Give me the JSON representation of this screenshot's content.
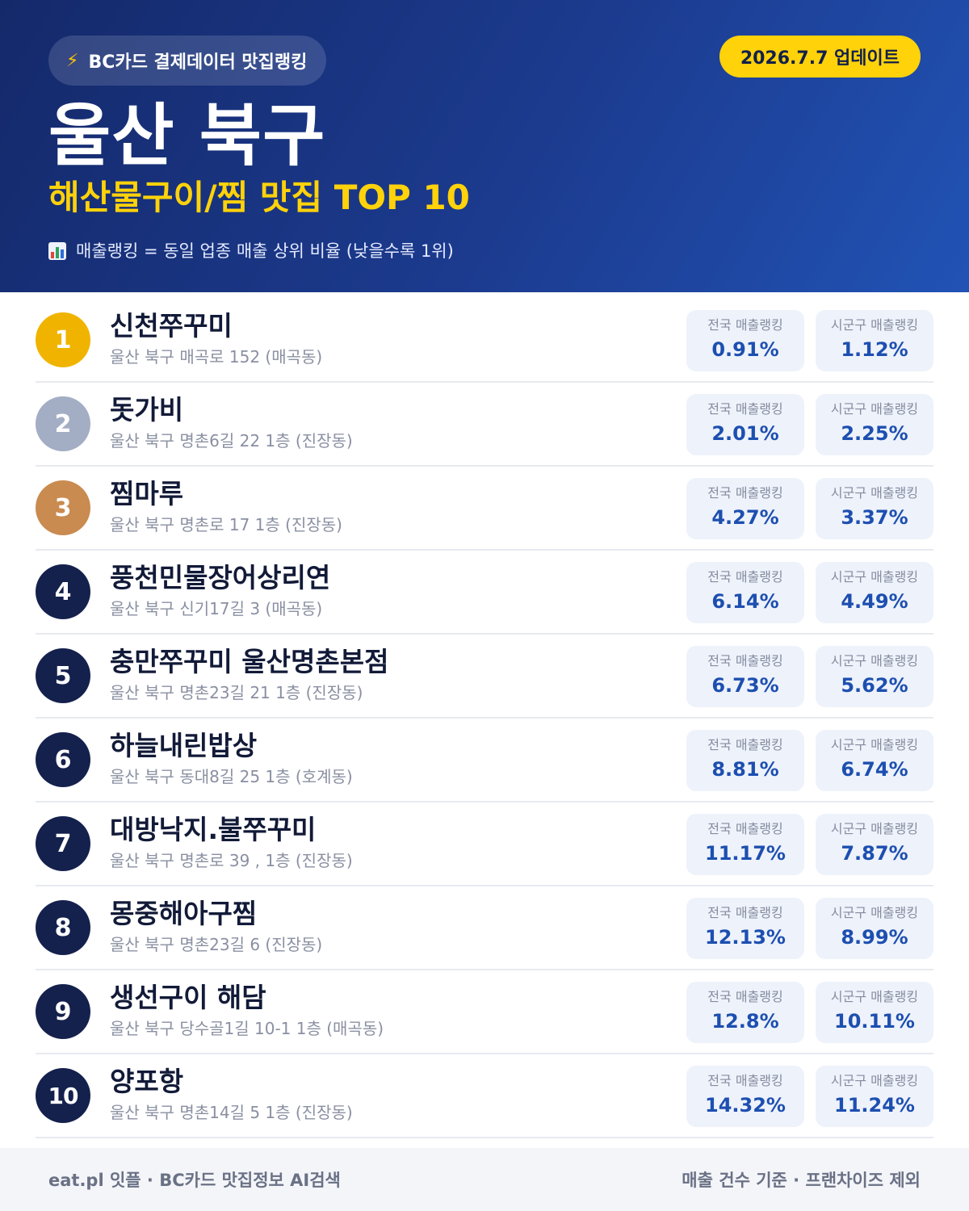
{
  "header": {
    "source_label": "BC카드 결제데이터 맛집랭킹",
    "update_label": "2026.7.7 업데이트",
    "region": "울산 북구",
    "subtitle": "해산물구이/찜 맛집 TOP 10",
    "legend_note": "매출랭킹 = 동일 업종 매출 상위 비율 (낮을수록 1위)",
    "icons": {
      "source": "lightning-bolt-icon",
      "legend": "bar-chart-icon"
    }
  },
  "colors": {
    "header_start": "#14296a",
    "header_end": "#2153b5",
    "accent_yellow": "#ffd20a",
    "rank_gold": "#f0b400",
    "rank_silver": "#a3aec5",
    "rank_bronze": "#c98b50",
    "rank_default": "#14214d",
    "stat_value": "#1d4fb0"
  },
  "stat_labels": {
    "national": "전국 매출랭킹",
    "local": "시군구 매출랭킹"
  },
  "restaurants": [
    {
      "rank": "1",
      "name": "신천쭈꾸미",
      "address": "울산 북구 매곡로 152 (매곡동)",
      "national": "0.91%",
      "local": "1.12%"
    },
    {
      "rank": "2",
      "name": "돗가비",
      "address": "울산 북구 명촌6길 22 1층 (진장동)",
      "national": "2.01%",
      "local": "2.25%"
    },
    {
      "rank": "3",
      "name": "찜마루",
      "address": "울산 북구 명촌로 17 1층 (진장동)",
      "national": "4.27%",
      "local": "3.37%"
    },
    {
      "rank": "4",
      "name": "풍천민물장어상리연",
      "address": "울산 북구 신기17길 3 (매곡동)",
      "national": "6.14%",
      "local": "4.49%"
    },
    {
      "rank": "5",
      "name": "충만쭈꾸미 울산명촌본점",
      "address": "울산 북구 명촌23길 21 1층 (진장동)",
      "national": "6.73%",
      "local": "5.62%"
    },
    {
      "rank": "6",
      "name": "하늘내린밥상",
      "address": "울산 북구 동대8길 25 1층 (호계동)",
      "national": "8.81%",
      "local": "6.74%"
    },
    {
      "rank": "7",
      "name": "대방낙지.불쭈꾸미",
      "address": "울산 북구 명촌로 39 , 1층 (진장동)",
      "national": "11.17%",
      "local": "7.87%"
    },
    {
      "rank": "8",
      "name": "몽중해아구찜",
      "address": "울산 북구 명촌23길 6 (진장동)",
      "national": "12.13%",
      "local": "8.99%"
    },
    {
      "rank": "9",
      "name": "생선구이 해담",
      "address": "울산 북구 당수골1길 10-1 1층 (매곡동)",
      "national": "12.8%",
      "local": "10.11%"
    },
    {
      "rank": "10",
      "name": "양포항",
      "address": "울산 북구 명촌14길 5 1층 (진장동)",
      "national": "14.32%",
      "local": "11.24%"
    }
  ],
  "footer": {
    "left": "eat.pl 잇플 · BC카드 맛집정보 AI검색",
    "right": "매출 건수 기준 · 프랜차이즈 제외"
  }
}
